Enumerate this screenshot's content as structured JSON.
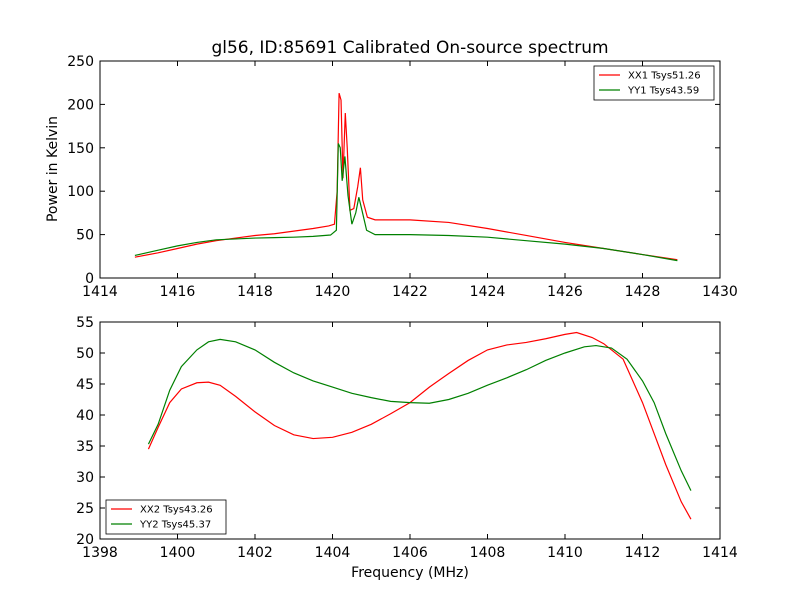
{
  "chart_data": [
    {
      "type": "line",
      "title": "gl56, ID:85691 Calibrated On-source spectrum",
      "xlabel": "",
      "ylabel": "Power in Kelvin",
      "xlim": [
        1414,
        1430
      ],
      "ylim": [
        0,
        250
      ],
      "xticks": [
        1414,
        1416,
        1418,
        1420,
        1422,
        1424,
        1426,
        1428,
        1430
      ],
      "yticks": [
        0,
        50,
        100,
        150,
        200,
        250
      ],
      "legend_position": "top-right",
      "series": [
        {
          "name": "XX1 Tsys51.26",
          "color": "#ff0000",
          "points": [
            [
              1414.9,
              24
            ],
            [
              1415.5,
              29
            ],
            [
              1416.0,
              34
            ],
            [
              1416.5,
              39
            ],
            [
              1417.0,
              43
            ],
            [
              1417.5,
              46
            ],
            [
              1418.0,
              49
            ],
            [
              1418.5,
              51
            ],
            [
              1419.0,
              54
            ],
            [
              1419.5,
              57
            ],
            [
              1419.9,
              60
            ],
            [
              1420.05,
              62
            ],
            [
              1420.12,
              100
            ],
            [
              1420.17,
              213
            ],
            [
              1420.22,
              205
            ],
            [
              1420.27,
              115
            ],
            [
              1420.33,
              190
            ],
            [
              1420.38,
              150
            ],
            [
              1420.45,
              78
            ],
            [
              1420.55,
              80
            ],
            [
              1420.65,
              105
            ],
            [
              1420.72,
              127
            ],
            [
              1420.78,
              90
            ],
            [
              1420.9,
              70
            ],
            [
              1421.1,
              67
            ],
            [
              1422.0,
              67
            ],
            [
              1423.0,
              64
            ],
            [
              1424.0,
              57
            ],
            [
              1425.0,
              49
            ],
            [
              1426.0,
              41
            ],
            [
              1427.0,
              34
            ],
            [
              1428.0,
              27
            ],
            [
              1428.9,
              21
            ]
          ]
        },
        {
          "name": "YY1 Tsys43.59",
          "color": "#008000",
          "points": [
            [
              1414.9,
              26
            ],
            [
              1415.5,
              32
            ],
            [
              1416.0,
              37
            ],
            [
              1416.5,
              41
            ],
            [
              1417.0,
              44
            ],
            [
              1417.5,
              45
            ],
            [
              1418.0,
              46
            ],
            [
              1418.5,
              46.5
            ],
            [
              1419.0,
              47
            ],
            [
              1419.5,
              48
            ],
            [
              1419.95,
              49.5
            ],
            [
              1420.1,
              55
            ],
            [
              1420.15,
              155
            ],
            [
              1420.2,
              150
            ],
            [
              1420.25,
              112
            ],
            [
              1420.32,
              140
            ],
            [
              1420.4,
              95
            ],
            [
              1420.5,
              62
            ],
            [
              1420.6,
              75
            ],
            [
              1420.68,
              93
            ],
            [
              1420.75,
              80
            ],
            [
              1420.88,
              55
            ],
            [
              1421.1,
              50
            ],
            [
              1422.0,
              50
            ],
            [
              1423.0,
              49
            ],
            [
              1424.0,
              47
            ],
            [
              1425.0,
              43
            ],
            [
              1426.0,
              39
            ],
            [
              1427.0,
              34
            ],
            [
              1428.0,
              27
            ],
            [
              1428.9,
              20
            ]
          ]
        }
      ]
    },
    {
      "type": "line",
      "title": "",
      "xlabel": "Frequency (MHz)",
      "ylabel": "",
      "xlim": [
        1398,
        1414
      ],
      "ylim": [
        20,
        55
      ],
      "xticks": [
        1398,
        1400,
        1402,
        1404,
        1406,
        1408,
        1410,
        1412,
        1414
      ],
      "yticks": [
        20,
        25,
        30,
        35,
        40,
        45,
        50,
        55
      ],
      "legend_position": "bottom-left",
      "series": [
        {
          "name": "XX2 Tsys43.26",
          "color": "#ff0000",
          "points": [
            [
              1399.25,
              34.5
            ],
            [
              1399.5,
              38
            ],
            [
              1399.8,
              42
            ],
            [
              1400.1,
              44.2
            ],
            [
              1400.5,
              45.2
            ],
            [
              1400.8,
              45.3
            ],
            [
              1401.1,
              44.8
            ],
            [
              1401.5,
              43
            ],
            [
              1402.0,
              40.5
            ],
            [
              1402.5,
              38.3
            ],
            [
              1403.0,
              36.8
            ],
            [
              1403.5,
              36.2
            ],
            [
              1404.0,
              36.4
            ],
            [
              1404.5,
              37.2
            ],
            [
              1405.0,
              38.5
            ],
            [
              1405.5,
              40.2
            ],
            [
              1406.0,
              42
            ],
            [
              1406.5,
              44.5
            ],
            [
              1407.0,
              46.7
            ],
            [
              1407.5,
              48.8
            ],
            [
              1408.0,
              50.5
            ],
            [
              1408.5,
              51.3
            ],
            [
              1409.0,
              51.7
            ],
            [
              1409.5,
              52.3
            ],
            [
              1410.0,
              53
            ],
            [
              1410.3,
              53.3
            ],
            [
              1410.7,
              52.5
            ],
            [
              1411.0,
              51.5
            ],
            [
              1411.5,
              49
            ],
            [
              1412.0,
              42
            ],
            [
              1412.3,
              37
            ],
            [
              1412.6,
              32
            ],
            [
              1413.0,
              26
            ],
            [
              1413.25,
              23.2
            ]
          ]
        },
        {
          "name": "YY2 Tsys45.37",
          "color": "#008000",
          "points": [
            [
              1399.25,
              35.3
            ],
            [
              1399.5,
              38.5
            ],
            [
              1399.8,
              44
            ],
            [
              1400.1,
              47.8
            ],
            [
              1400.5,
              50.5
            ],
            [
              1400.8,
              51.8
            ],
            [
              1401.1,
              52.2
            ],
            [
              1401.5,
              51.8
            ],
            [
              1402.0,
              50.5
            ],
            [
              1402.5,
              48.5
            ],
            [
              1403.0,
              46.8
            ],
            [
              1403.5,
              45.5
            ],
            [
              1404.0,
              44.5
            ],
            [
              1404.5,
              43.5
            ],
            [
              1405.0,
              42.8
            ],
            [
              1405.5,
              42.2
            ],
            [
              1406.0,
              42
            ],
            [
              1406.5,
              41.9
            ],
            [
              1407.0,
              42.5
            ],
            [
              1407.5,
              43.5
            ],
            [
              1408.0,
              44.8
            ],
            [
              1408.5,
              46
            ],
            [
              1409.0,
              47.3
            ],
            [
              1409.5,
              48.8
            ],
            [
              1410.0,
              50
            ],
            [
              1410.5,
              51
            ],
            [
              1410.8,
              51.2
            ],
            [
              1411.2,
              50.8
            ],
            [
              1411.6,
              49
            ],
            [
              1412.0,
              45.5
            ],
            [
              1412.3,
              42
            ],
            [
              1412.6,
              37
            ],
            [
              1413.0,
              31
            ],
            [
              1413.25,
              27.8
            ]
          ]
        }
      ]
    }
  ]
}
